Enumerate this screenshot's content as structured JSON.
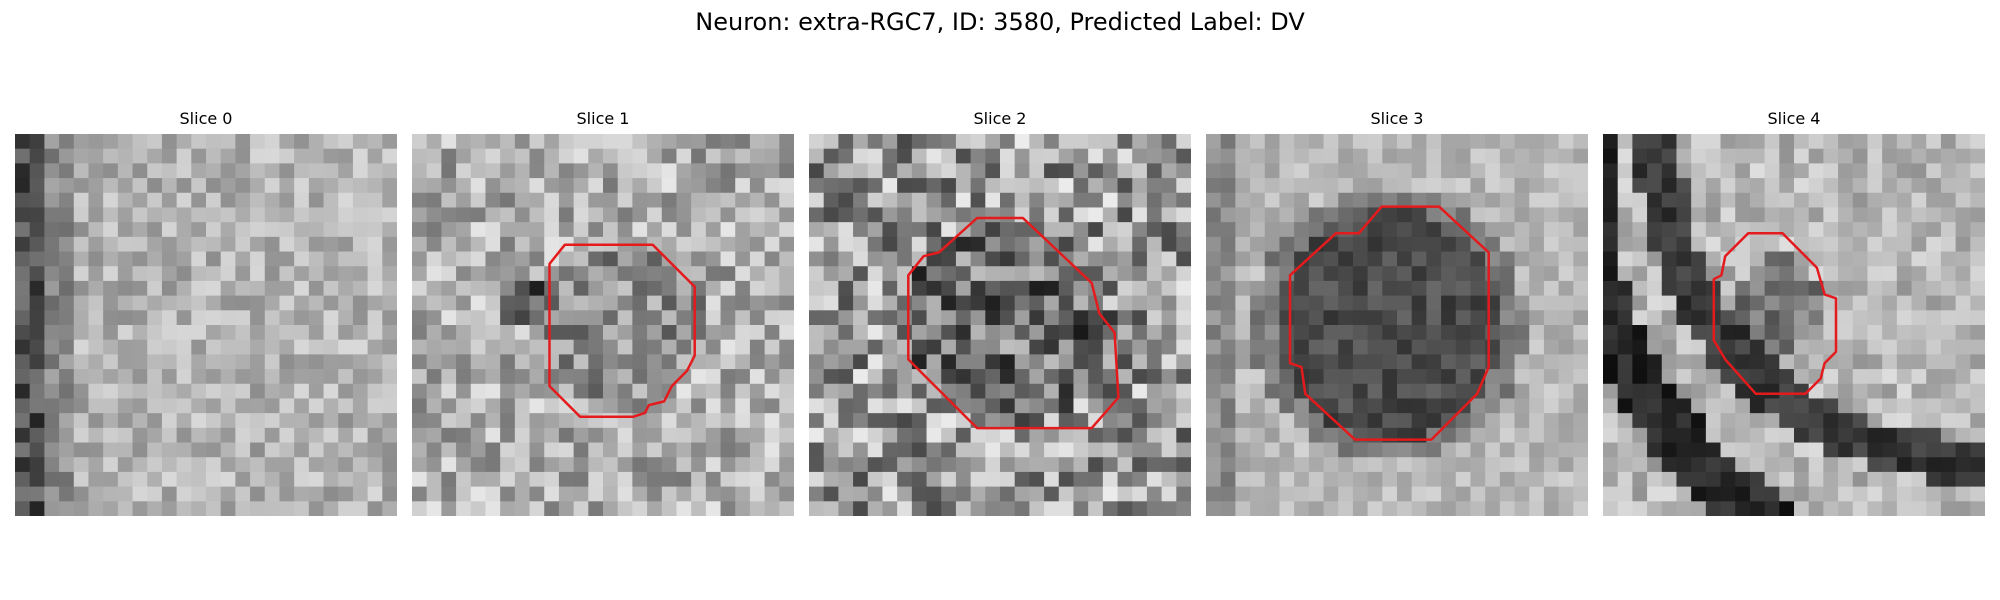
{
  "figure": {
    "title": "Neuron: extra-RGC7, ID: 3580, Predicted Label: DV"
  },
  "slices": [
    {
      "label": "Slice 0",
      "contour": [],
      "feature": "edge-left"
    },
    {
      "label": "Slice 1",
      "contour": [
        [
          0.36,
          0.34
        ],
        [
          0.4,
          0.29
        ],
        [
          0.63,
          0.29
        ],
        [
          0.74,
          0.4
        ],
        [
          0.74,
          0.58
        ],
        [
          0.72,
          0.62
        ],
        [
          0.68,
          0.66
        ],
        [
          0.66,
          0.7
        ],
        [
          0.62,
          0.71
        ],
        [
          0.61,
          0.73
        ],
        [
          0.58,
          0.74
        ],
        [
          0.44,
          0.74
        ],
        [
          0.36,
          0.66
        ]
      ],
      "feature": "dark-left"
    },
    {
      "label": "Slice 2",
      "contour": [
        [
          0.26,
          0.37
        ],
        [
          0.3,
          0.32
        ],
        [
          0.34,
          0.31
        ],
        [
          0.44,
          0.22
        ],
        [
          0.56,
          0.22
        ],
        [
          0.74,
          0.39
        ],
        [
          0.76,
          0.47
        ],
        [
          0.8,
          0.52
        ],
        [
          0.81,
          0.69
        ],
        [
          0.74,
          0.77
        ],
        [
          0.44,
          0.77
        ],
        [
          0.26,
          0.59
        ]
      ],
      "feature": "noisy"
    },
    {
      "label": "Slice 3",
      "contour": [
        [
          0.22,
          0.37
        ],
        [
          0.34,
          0.26
        ],
        [
          0.4,
          0.26
        ],
        [
          0.46,
          0.19
        ],
        [
          0.61,
          0.19
        ],
        [
          0.74,
          0.31
        ],
        [
          0.74,
          0.61
        ],
        [
          0.71,
          0.68
        ],
        [
          0.59,
          0.8
        ],
        [
          0.39,
          0.8
        ],
        [
          0.26,
          0.68
        ],
        [
          0.25,
          0.61
        ],
        [
          0.22,
          0.6
        ]
      ],
      "feature": "smooth"
    },
    {
      "label": "Slice 4",
      "contour": [
        [
          0.29,
          0.38
        ],
        [
          0.31,
          0.37
        ],
        [
          0.32,
          0.32
        ],
        [
          0.38,
          0.26
        ],
        [
          0.47,
          0.26
        ],
        [
          0.56,
          0.35
        ],
        [
          0.58,
          0.42
        ],
        [
          0.61,
          0.43
        ],
        [
          0.61,
          0.57
        ],
        [
          0.58,
          0.6
        ],
        [
          0.57,
          0.64
        ],
        [
          0.53,
          0.68
        ],
        [
          0.4,
          0.68
        ],
        [
          0.32,
          0.59
        ],
        [
          0.29,
          0.54
        ]
      ],
      "feature": "arcs"
    }
  ],
  "colors": {
    "contour": "#e41a1c"
  }
}
